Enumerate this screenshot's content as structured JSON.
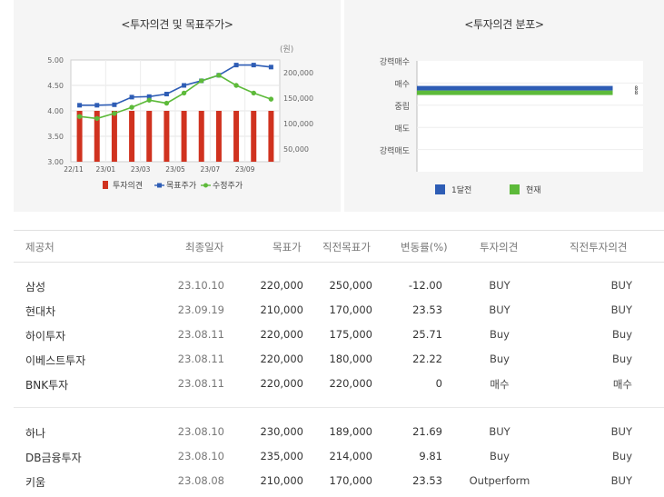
{
  "left_panel": {
    "title": "<투자의견 및 목표주가>",
    "unit_label": "(원)"
  },
  "right_panel": {
    "title": "<투자의견 분포>"
  },
  "chart_data": [
    {
      "type": "bar+line",
      "title": "<투자의견 및 목표주가>",
      "x_tick_labels": [
        "22/11",
        "23/01",
        "23/03",
        "23/05",
        "23/07",
        "23/09"
      ],
      "y_left": {
        "ticks": [
          "5.00",
          "4.50",
          "4.00",
          "3.50",
          "3.00"
        ],
        "range": [
          3.0,
          5.0
        ]
      },
      "y_right": {
        "unit": "(원)",
        "ticks": [
          "200,000",
          "150,000",
          "100,000",
          "50,000"
        ],
        "range": [
          25000,
          225000
        ]
      },
      "series": [
        {
          "name": "투자의견",
          "kind": "bar",
          "color": "#d0321f",
          "axis": "left",
          "values": [
            4,
            4,
            4,
            4,
            4,
            4,
            4,
            4,
            4,
            4,
            4,
            4
          ]
        },
        {
          "name": "목표주가",
          "kind": "line",
          "color": "#2e5db5",
          "axis": "right",
          "values": [
            136000,
            136000,
            137000,
            152000,
            153000,
            158000,
            175000,
            184000,
            195000,
            215000,
            215000,
            211000
          ]
        },
        {
          "name": "수정주가",
          "kind": "line",
          "color": "#5dba3a",
          "axis": "right",
          "values": [
            114000,
            110000,
            120000,
            132000,
            146000,
            140000,
            160000,
            184000,
            195000,
            175000,
            160000,
            148000
          ]
        }
      ],
      "legend": [
        "투자의견",
        "목표주가",
        "수정주가"
      ],
      "legend_position": "bottom",
      "grid": true
    },
    {
      "type": "bar",
      "orientation": "horizontal",
      "title": "<투자의견 분포>",
      "categories": [
        "강력매수",
        "매수",
        "중립",
        "매도",
        "강력매도"
      ],
      "series": [
        {
          "name": "1달전",
          "color": "#2e5db5",
          "values": [
            0,
            8,
            0,
            0,
            0
          ]
        },
        {
          "name": "현재",
          "color": "#5dba3a",
          "values": [
            0,
            8,
            0,
            0,
            0
          ]
        }
      ],
      "data_label": "8",
      "legend_position": "bottom"
    }
  ],
  "table": {
    "headers": [
      "제공처",
      "최종일자",
      "목표가",
      "직전목표가",
      "변동률(%)",
      "투자의견",
      "직전투자의견"
    ],
    "groups": [
      [
        {
          "firm": "삼성",
          "date": "23.10.10",
          "target": "220,000",
          "prev_target": "250,000",
          "change": "-12.00",
          "opinion": "BUY",
          "prev_opinion": "BUY"
        },
        {
          "firm": "현대차",
          "date": "23.09.19",
          "target": "210,000",
          "prev_target": "170,000",
          "change": "23.53",
          "opinion": "BUY",
          "prev_opinion": "BUY"
        },
        {
          "firm": "하이투자",
          "date": "23.08.11",
          "target": "220,000",
          "prev_target": "175,000",
          "change": "25.71",
          "opinion": "Buy",
          "prev_opinion": "Buy"
        },
        {
          "firm": "이베스트투자",
          "date": "23.08.11",
          "target": "220,000",
          "prev_target": "180,000",
          "change": "22.22",
          "opinion": "Buy",
          "prev_opinion": "Buy"
        },
        {
          "firm": "BNK투자",
          "date": "23.08.11",
          "target": "220,000",
          "prev_target": "220,000",
          "change": "0",
          "opinion": "매수",
          "prev_opinion": "매수"
        }
      ],
      [
        {
          "firm": "하나",
          "date": "23.08.10",
          "target": "230,000",
          "prev_target": "189,000",
          "change": "21.69",
          "opinion": "BUY",
          "prev_opinion": "BUY"
        },
        {
          "firm": "DB금융투자",
          "date": "23.08.10",
          "target": "235,000",
          "prev_target": "214,000",
          "change": "9.81",
          "opinion": "Buy",
          "prev_opinion": "Buy"
        },
        {
          "firm": "키움",
          "date": "23.08.08",
          "target": "210,000",
          "prev_target": "170,000",
          "change": "23.53",
          "opinion": "Outperform",
          "prev_opinion": "BUY"
        }
      ]
    ]
  }
}
